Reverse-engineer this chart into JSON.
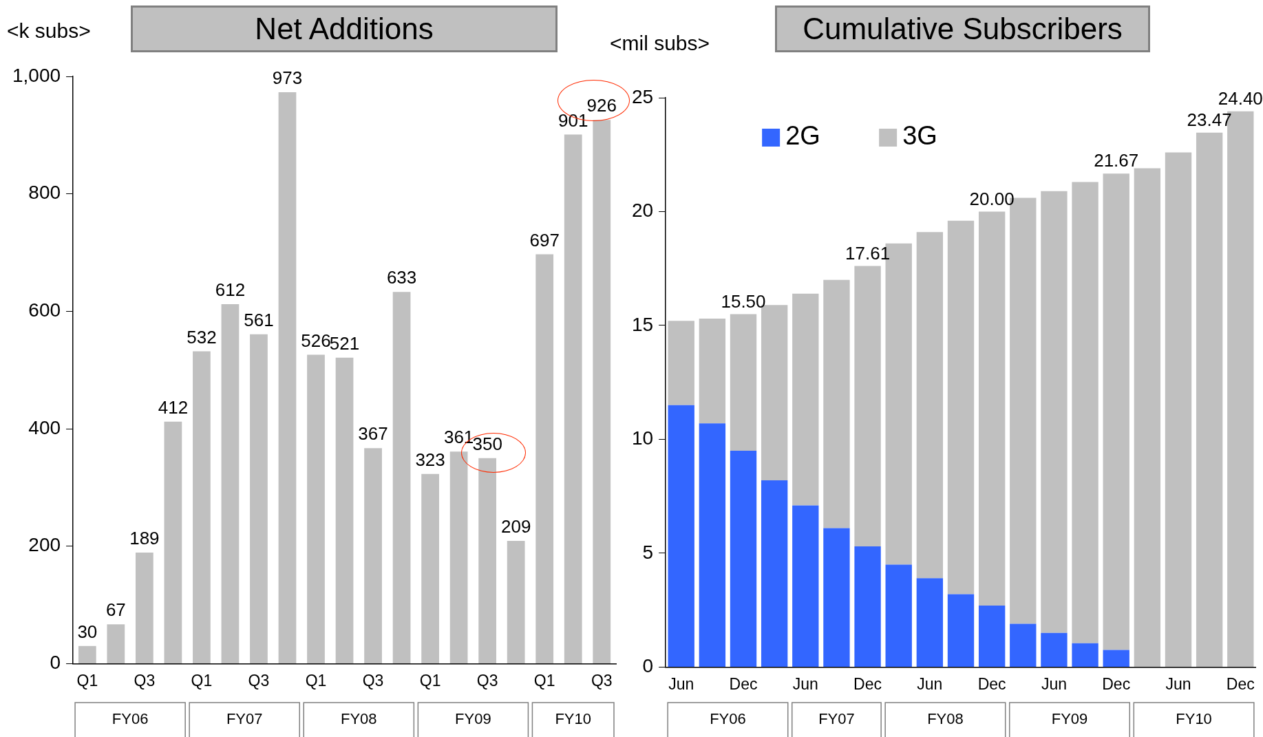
{
  "chart_data": [
    {
      "type": "bar",
      "title": "Net Additions",
      "ylabel": "<k subs>",
      "categories": [
        "Q1",
        null,
        "Q3",
        null,
        "Q1",
        null,
        "Q3",
        null,
        "Q1",
        null,
        "Q3",
        null,
        "Q1",
        null,
        "Q3",
        null,
        "Q1",
        null,
        "Q3"
      ],
      "values": [
        30,
        67,
        189,
        412,
        532,
        612,
        561,
        973,
        526,
        521,
        367,
        633,
        323,
        361,
        350,
        209,
        697,
        901,
        926
      ],
      "color": "#c0c0c0",
      "ylim": [
        0,
        1000
      ],
      "yticks": [
        0,
        200,
        400,
        600,
        800,
        {
          "value": 1000,
          "label": "1,000"
        }
      ],
      "data_labels": true,
      "annotations": [
        "FY06",
        "FY07",
        "FY08",
        "FY09",
        "FY10"
      ]
    },
    {
      "type": "bar",
      "title": "Cumulative Subscribers",
      "ylabel": "<mil subs>",
      "categories": [
        "Jun",
        null,
        "Dec",
        null,
        "Jun",
        null,
        "Dec",
        null,
        "Jun",
        null,
        "Dec",
        null,
        "Jun",
        null,
        "Dec",
        null,
        "Jun",
        null,
        "Dec"
      ],
      "stacked": true,
      "legend": "top left",
      "series": [
        {
          "name": "2G",
          "color": "#3366ff",
          "values": [
            11.5,
            10.7,
            9.5,
            8.2,
            7.1,
            6.1,
            5.3,
            4.5,
            3.9,
            3.2,
            2.7,
            1.9,
            1.5,
            1.05,
            0.75,
            0,
            0,
            0,
            0
          ]
        },
        {
          "name": "3G",
          "color": "#c0c0c0",
          "values": [
            3.7,
            4.6,
            6.0,
            7.7,
            9.3,
            10.9,
            12.31,
            14.1,
            15.2,
            16.4,
            17.3,
            18.7,
            19.4,
            20.25,
            20.92,
            21.9,
            22.6,
            23.47,
            24.4
          ]
        }
      ],
      "totals": [
        null,
        null,
        "15.50",
        null,
        null,
        null,
        "17.61",
        null,
        null,
        null,
        "20.00",
        null,
        null,
        null,
        "21.67",
        null,
        null,
        "23.47",
        "24.40"
      ],
      "ylim": [
        0,
        25
      ],
      "yticks": [
        0,
        5,
        10,
        15,
        20,
        25
      ],
      "annotations": [
        "FY06",
        "FY07",
        "FY08",
        "FY09",
        "FY10"
      ]
    }
  ]
}
